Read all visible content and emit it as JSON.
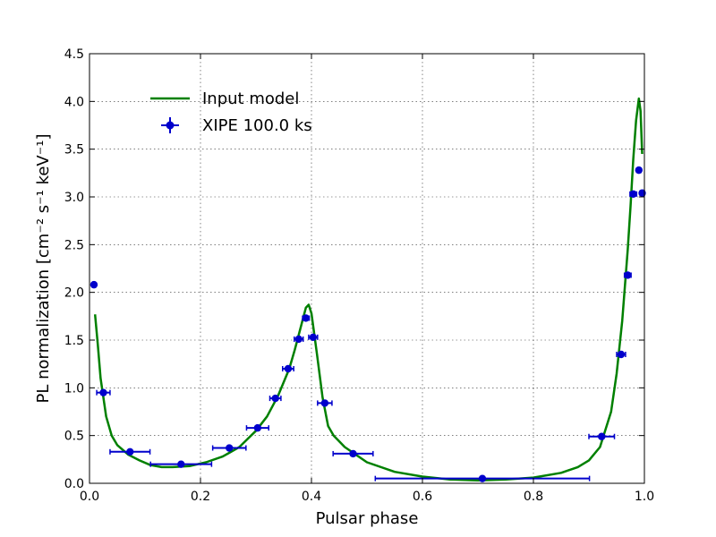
{
  "chart_data": {
    "type": "scatter",
    "xlabel": "Pulsar phase",
    "ylabel": "PL normalization [cm⁻² s⁻¹ keV⁻¹]",
    "xlim": [
      0.0,
      1.0
    ],
    "ylim": [
      0.0,
      4.5
    ],
    "xticks": [
      "0.0",
      "0.2",
      "0.4",
      "0.6",
      "0.8",
      "1.0"
    ],
    "yticks": [
      "0.0",
      "0.5",
      "1.0",
      "1.5",
      "2.0",
      "2.5",
      "3.0",
      "3.5",
      "4.0",
      "4.5"
    ],
    "grid": true,
    "legend_position": "top-left",
    "series": [
      {
        "name": "Input model",
        "kind": "line",
        "color": "#008000",
        "x": [
          0.01,
          0.015,
          0.02,
          0.03,
          0.04,
          0.05,
          0.07,
          0.09,
          0.11,
          0.13,
          0.15,
          0.18,
          0.21,
          0.24,
          0.27,
          0.3,
          0.32,
          0.34,
          0.36,
          0.37,
          0.38,
          0.39,
          0.395,
          0.4,
          0.41,
          0.42,
          0.43,
          0.44,
          0.46,
          0.5,
          0.55,
          0.6,
          0.65,
          0.7,
          0.75,
          0.8,
          0.85,
          0.88,
          0.9,
          0.92,
          0.94,
          0.95,
          0.96,
          0.97,
          0.975,
          0.98,
          0.985,
          0.99,
          0.993,
          0.996
        ],
        "y": [
          1.77,
          1.45,
          1.1,
          0.7,
          0.5,
          0.4,
          0.3,
          0.24,
          0.19,
          0.17,
          0.17,
          0.18,
          0.22,
          0.28,
          0.38,
          0.55,
          0.7,
          0.92,
          1.2,
          1.4,
          1.62,
          1.84,
          1.87,
          1.78,
          1.35,
          0.9,
          0.6,
          0.5,
          0.38,
          0.22,
          0.12,
          0.07,
          0.04,
          0.03,
          0.04,
          0.06,
          0.11,
          0.17,
          0.24,
          0.38,
          0.75,
          1.15,
          1.7,
          2.45,
          2.9,
          3.4,
          3.8,
          4.03,
          3.9,
          3.45
        ]
      },
      {
        "name": "XIPE 100.0 ks",
        "kind": "errorbar",
        "color": "#0000cc",
        "points": [
          {
            "x": 0.008,
            "y": 2.08,
            "xerr": 0.0
          },
          {
            "x": 0.025,
            "y": 0.95,
            "xerr": 0.012
          },
          {
            "x": 0.073,
            "y": 0.33,
            "xerr": 0.036
          },
          {
            "x": 0.165,
            "y": 0.2,
            "xerr": 0.055
          },
          {
            "x": 0.252,
            "y": 0.37,
            "xerr": 0.03
          },
          {
            "x": 0.303,
            "y": 0.58,
            "xerr": 0.02
          },
          {
            "x": 0.335,
            "y": 0.89,
            "xerr": 0.01
          },
          {
            "x": 0.358,
            "y": 1.2,
            "xerr": 0.01
          },
          {
            "x": 0.377,
            "y": 1.51,
            "xerr": 0.008
          },
          {
            "x": 0.39,
            "y": 1.73,
            "xerr": 0.006
          },
          {
            "x": 0.403,
            "y": 1.53,
            "xerr": 0.008
          },
          {
            "x": 0.424,
            "y": 0.84,
            "xerr": 0.013
          },
          {
            "x": 0.475,
            "y": 0.31,
            "xerr": 0.036
          },
          {
            "x": 0.708,
            "y": 0.05,
            "xerr": 0.193
          },
          {
            "x": 0.923,
            "y": 0.49,
            "xerr": 0.023
          },
          {
            "x": 0.958,
            "y": 1.35,
            "xerr": 0.008
          },
          {
            "x": 0.97,
            "y": 2.18,
            "xerr": 0.006
          },
          {
            "x": 0.98,
            "y": 3.03,
            "xerr": 0.006
          },
          {
            "x": 0.99,
            "y": 3.28,
            "xerr": 0.004
          },
          {
            "x": 0.996,
            "y": 3.04,
            "xerr": 0.004
          }
        ]
      }
    ]
  }
}
